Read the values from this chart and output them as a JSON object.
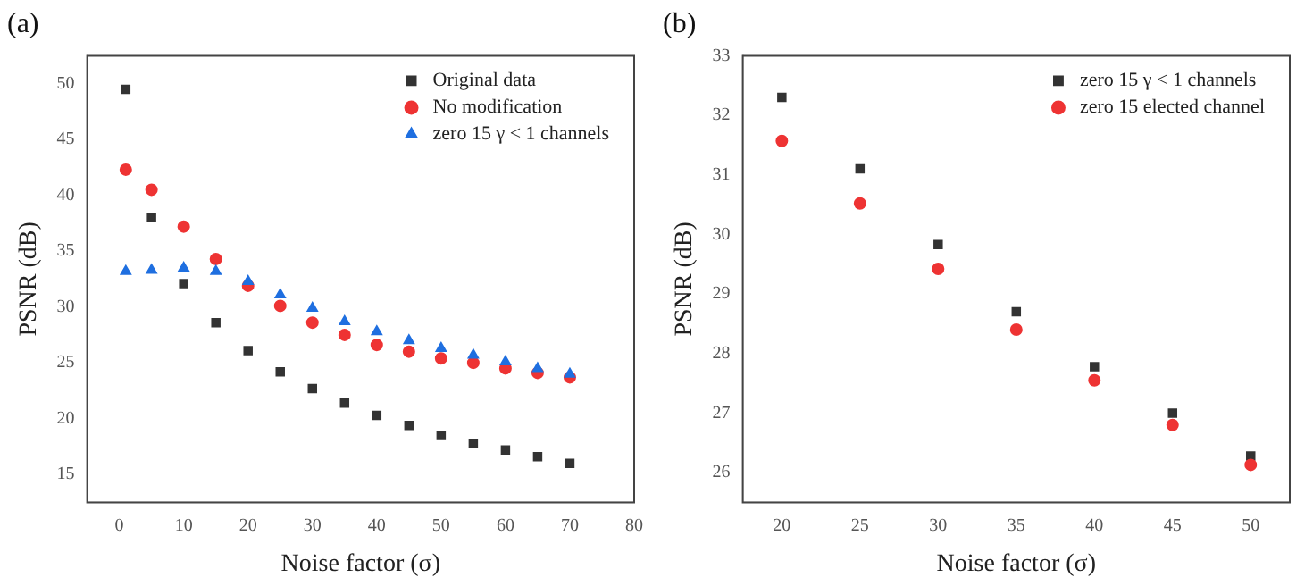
{
  "chart_data": [
    {
      "type": "scatter",
      "title": "(a)",
      "xlabel": "Noise factor (σ)",
      "ylabel": "PSNR (dB)",
      "xlim": [
        -5,
        80
      ],
      "xticks": [
        0,
        10,
        20,
        30,
        40,
        50,
        60,
        70,
        80
      ],
      "ylim": [
        12.5,
        52.5
      ],
      "yticks": [
        15,
        20,
        25,
        30,
        35,
        40,
        45,
        50
      ],
      "grid": false,
      "legend": "top right",
      "x": [
        1,
        5,
        10,
        15,
        20,
        25,
        30,
        35,
        40,
        45,
        50,
        55,
        60,
        65,
        70
      ],
      "series": [
        {
          "name": "Original data",
          "color": "#333333",
          "marker": "square",
          "values": [
            49.5,
            38,
            32.1,
            28.6,
            26.1,
            24.2,
            22.7,
            21.4,
            20.3,
            19.4,
            18.5,
            17.8,
            17.2,
            16.6,
            16.0
          ]
        },
        {
          "name": "No modification",
          "color": "#ee3333",
          "marker": "circle",
          "values": [
            42.3,
            40.5,
            37.2,
            34.3,
            31.9,
            30.1,
            28.6,
            27.5,
            26.6,
            26.0,
            25.4,
            25.0,
            24.5,
            24.1,
            23.7
          ]
        },
        {
          "name": "zero 15 γ < 1 channels",
          "color": "#1f6fe0",
          "marker": "triangle",
          "values": [
            33.2,
            33.3,
            33.5,
            33.2,
            32.3,
            31.1,
            29.9,
            28.7,
            27.8,
            27.0,
            26.3,
            25.7,
            25.1,
            24.5,
            24.0
          ]
        }
      ]
    },
    {
      "type": "scatter",
      "title": "(b)",
      "xlabel": "Noise factor (σ)",
      "ylabel": "PSNR (dB)",
      "xlim": [
        17.5,
        52.5
      ],
      "xticks": [
        20,
        25,
        30,
        35,
        40,
        45,
        50
      ],
      "ylim": [
        25.5,
        33
      ],
      "yticks": [
        26,
        27,
        28,
        29,
        30,
        31,
        32,
        33
      ],
      "grid": false,
      "legend": "top right",
      "x": [
        20,
        25,
        30,
        35,
        40,
        45,
        50
      ],
      "series": [
        {
          "name": "zero 15 γ < 1 channels",
          "color": "#333333",
          "marker": "square",
          "values": [
            32.3,
            31.1,
            29.83,
            28.7,
            27.78,
            27.0,
            26.28
          ]
        },
        {
          "name": "zero 15 elected channel",
          "color": "#ee3333",
          "marker": "circle",
          "values": [
            31.57,
            30.52,
            29.42,
            28.4,
            27.55,
            26.8,
            26.13
          ]
        }
      ]
    }
  ]
}
